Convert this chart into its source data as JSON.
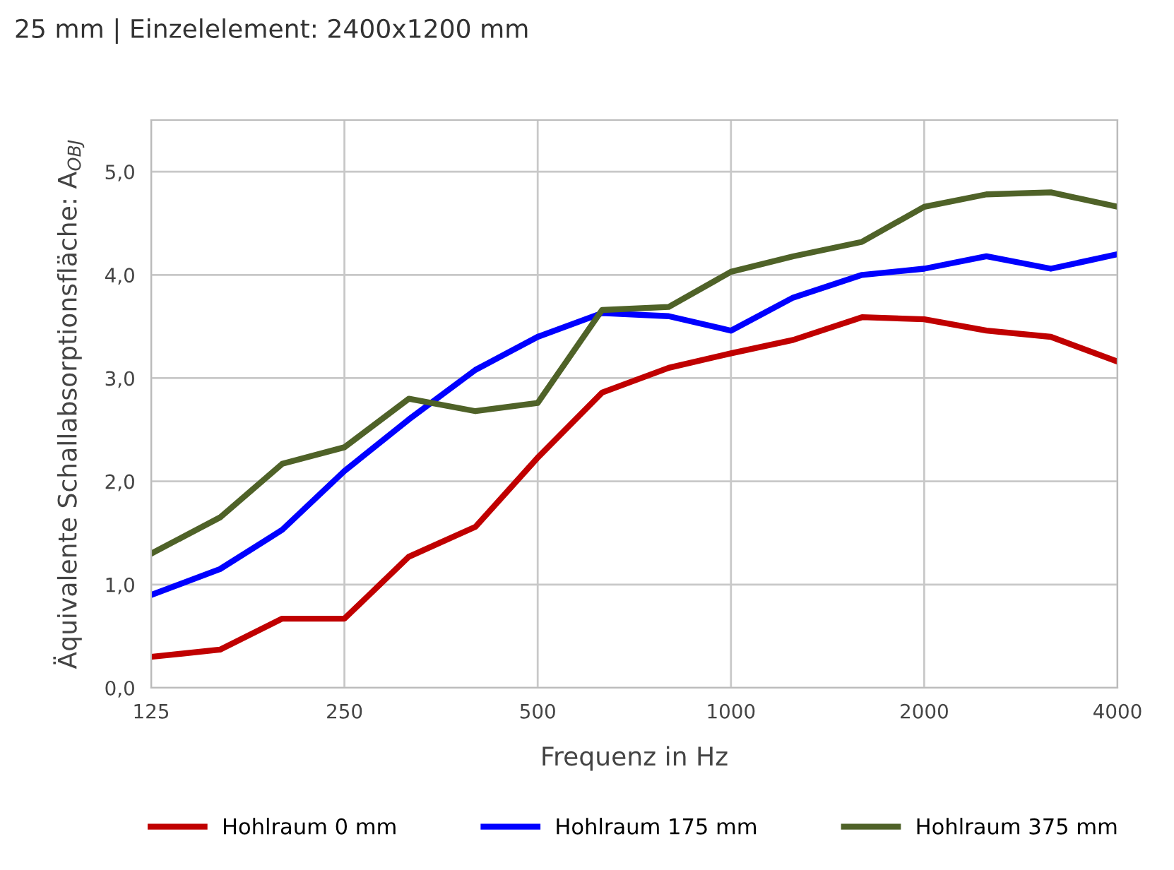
{
  "chart_data": {
    "type": "line",
    "title": "25 mm | Einzelelement: 2400x1200 mm",
    "xlabel": "Frequenz in Hz",
    "ylabel": "Äquivalente Schallabsorptionsfläche: A$_{OBJ}$",
    "x": [
      125,
      160,
      200,
      250,
      315,
      400,
      500,
      630,
      800,
      1000,
      1250,
      1600,
      2000,
      2500,
      3150,
      4000
    ],
    "series": [
      {
        "name": "Hohlraum 0 mm",
        "color": "#c00000",
        "values": [
          0.3,
          0.37,
          0.67,
          0.67,
          1.27,
          1.56,
          2.23,
          2.86,
          3.1,
          3.24,
          3.37,
          3.59,
          3.57,
          3.46,
          3.4,
          3.16
        ]
      },
      {
        "name": "Hohlraum 175 mm",
        "color": "#0000ff",
        "values": [
          0.9,
          1.15,
          1.53,
          2.1,
          2.6,
          3.08,
          3.4,
          3.63,
          3.6,
          3.46,
          3.78,
          4.0,
          4.06,
          4.18,
          4.06,
          4.2
        ]
      },
      {
        "name": "Hohlraum 375 mm",
        "color": "#4f6228",
        "values": [
          1.3,
          1.65,
          2.17,
          2.33,
          2.8,
          2.68,
          2.76,
          3.66,
          3.69,
          4.03,
          4.18,
          4.32,
          4.66,
          4.78,
          4.8,
          4.66
        ]
      }
    ],
    "log": "x",
    "xlim": [
      125,
      4000
    ],
    "xticks": [
      125,
      250,
      500,
      1000,
      2000,
      4000
    ],
    "ylim": [
      0,
      5.5
    ],
    "yticks": [
      {
        "value": 0,
        "label": "0,0"
      },
      {
        "value": 1,
        "label": "1,0"
      },
      {
        "value": 2,
        "label": "2,0"
      },
      {
        "value": 3,
        "label": "3,0"
      },
      {
        "value": 4,
        "label": "4,0"
      },
      {
        "value": 5,
        "label": "5,0"
      }
    ],
    "grid": true,
    "legend": "bottom",
    "marker": "none",
    "line_style": "solid"
  }
}
